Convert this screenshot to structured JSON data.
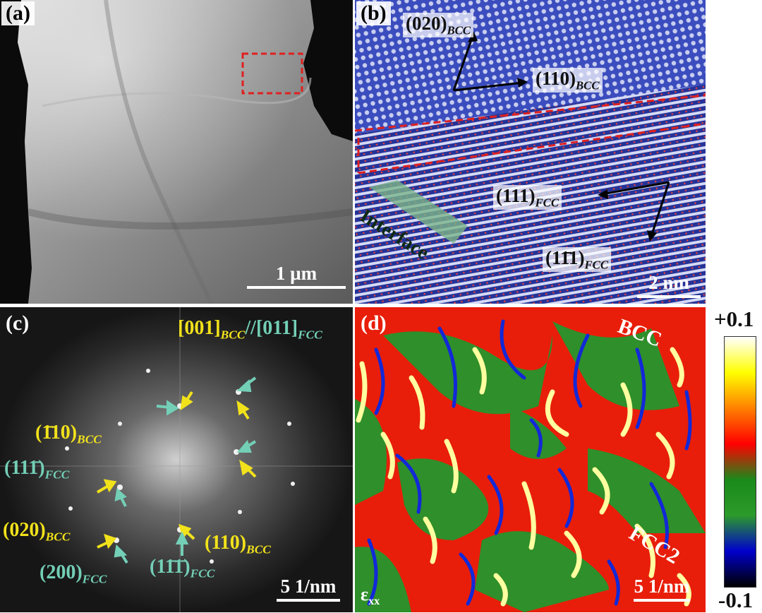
{
  "panel_a": {
    "tag": "(a)",
    "scale_label": "1 µm"
  },
  "panel_b": {
    "tag": "(b)",
    "labels": {
      "bcc_020": "(020)",
      "bcc_110": "(110)",
      "fcc_111": "(111)",
      "fcc_11bar1": "(11̄1)",
      "sub_bcc": "BCC",
      "sub_fcc": "FCC"
    },
    "interface_label": "Interface",
    "scale_label": "2 nm"
  },
  "panel_c": {
    "tag": "(c)",
    "zone_bcc": "[001]",
    "zone_sep": "//",
    "zone_fcc": "[011]",
    "labels": {
      "bcc_bar110": "(1̄10)",
      "fcc_111bar": "(111̄)",
      "bcc_020": "(020)",
      "fcc_200": "(200)",
      "bcc_110": "(110)",
      "fcc_1bar11bar": "(11̄1̄)",
      "sub_bcc": "BCC",
      "sub_fcc": "FCC"
    },
    "scale_label": "5 1/nm",
    "colors": {
      "bcc": "#f2e21b",
      "fcc": "#73cfb6"
    }
  },
  "panel_d": {
    "tag": "(d)",
    "label_bcc": "BCC",
    "label_fcc2": "FCC2",
    "strain_symbol": "ε",
    "strain_sub": "xx",
    "scale_label": "5 1/nm"
  },
  "colorbar": {
    "max_label": "+0.1",
    "min_label": "-0.1",
    "stops": [
      "#ffffff",
      "#ffff00",
      "#ff8000",
      "#ff0000",
      "#1a8a1a",
      "#2b9a2b",
      "#0000cc",
      "#000000"
    ]
  }
}
